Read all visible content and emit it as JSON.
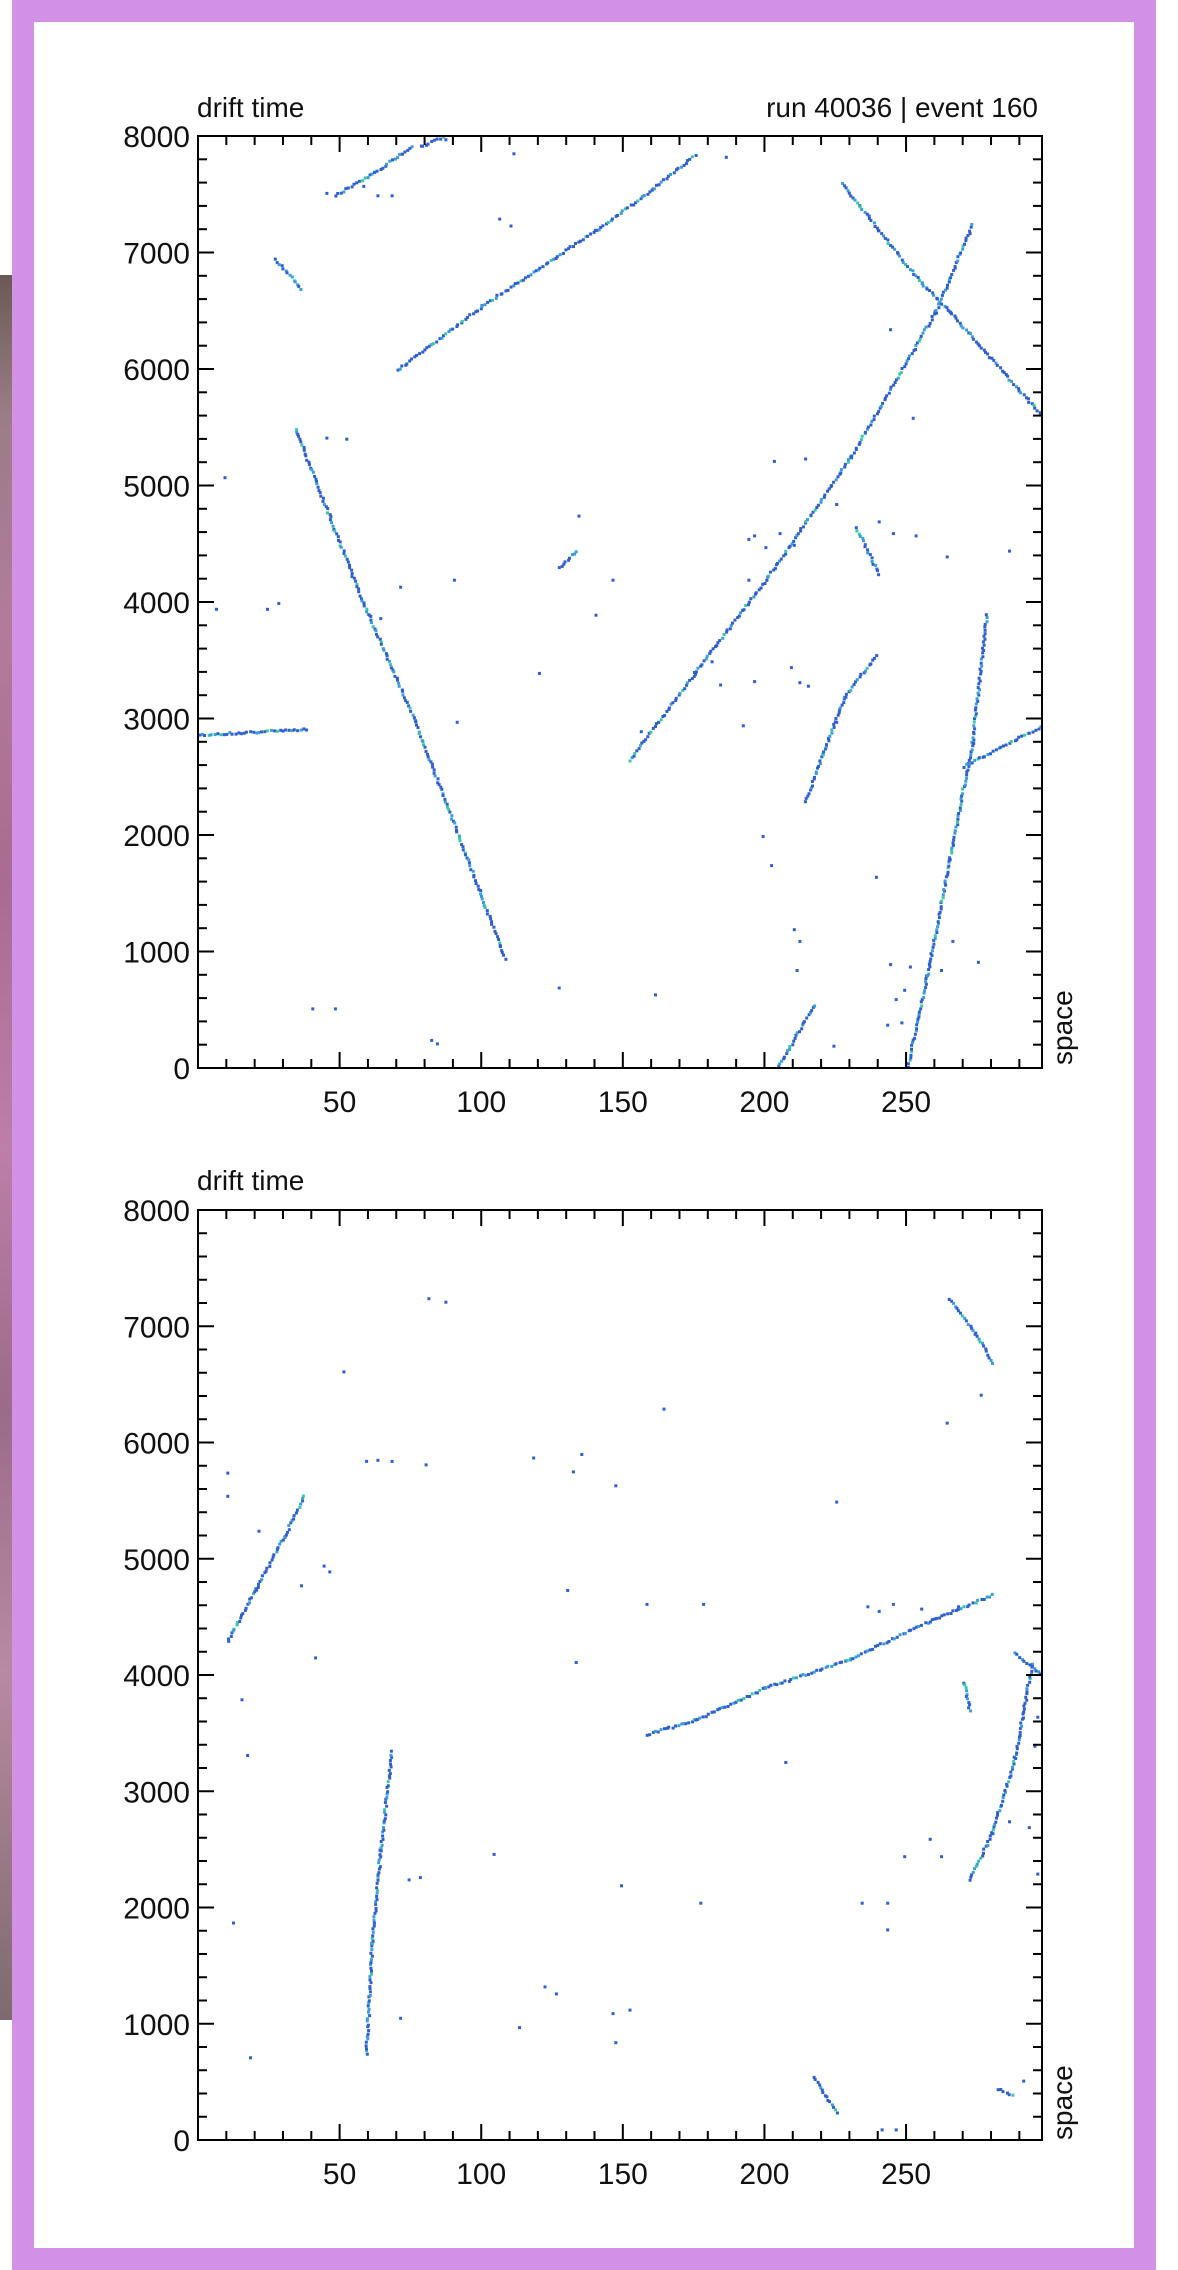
{
  "chart_data": [
    {
      "type": "scatter",
      "title": "run 40036 | event 160",
      "xlabel": "space",
      "ylabel": "drift time",
      "xlim": [
        0,
        298
      ],
      "ylim": [
        0,
        8000
      ],
      "x_ticks": [
        50,
        100,
        150,
        200,
        250
      ],
      "y_ticks": [
        0,
        1000,
        2000,
        3000,
        4000,
        5000,
        6000,
        7000,
        8000
      ],
      "grid": false,
      "colors": {
        "hit": "#2f5fd0",
        "hit_secondary": "#3aa0d8",
        "hit_highlight": "#39c9a8"
      },
      "tracks": [
        {
          "x": [
            34,
            58,
            76,
            108
          ],
          "y": [
            5500,
            4000,
            3000,
            950
          ]
        },
        {
          "x": [
            152,
            175,
            200,
            230,
            260,
            273
          ],
          "y": [
            2650,
            3400,
            4200,
            5250,
            6500,
            7250
          ]
        },
        {
          "x": [
            70,
            100,
            140,
            160,
            175
          ],
          "y": [
            6000,
            6550,
            7200,
            7550,
            7850
          ]
        },
        {
          "x": [
            227,
            240,
            255,
            265,
            298
          ],
          "y": [
            7600,
            7200,
            6750,
            6500,
            5600
          ]
        },
        {
          "x": [
            214,
            220,
            228,
            239
          ],
          "y": [
            2300,
            2700,
            3200,
            3550
          ]
        },
        {
          "x": [
            250,
            257,
            265,
            273,
            278
          ],
          "y": [
            0,
            800,
            1800,
            2800,
            3900
          ]
        },
        {
          "x": [
            0,
            38
          ],
          "y": [
            2870,
            2920
          ]
        },
        {
          "x": [
            270,
            298
          ],
          "y": [
            2600,
            2950
          ]
        },
        {
          "x": [
            204,
            217
          ],
          "y": [
            0,
            550
          ]
        },
        {
          "x": [
            48,
            62,
            75
          ],
          "y": [
            7500,
            7700,
            7920
          ]
        },
        {
          "x": [
            78,
            86
          ],
          "y": [
            7920,
            8000
          ]
        },
        {
          "x": [
            27,
            36
          ],
          "y": [
            6950,
            6700
          ]
        },
        {
          "x": [
            232,
            240
          ],
          "y": [
            4650,
            4250
          ]
        },
        {
          "x": [
            127,
            133
          ],
          "y": [
            4300,
            4450
          ]
        }
      ],
      "hits": [
        [
          45,
          5420
        ],
        [
          52,
          5410
        ],
        [
          9,
          5080
        ],
        [
          6,
          3950
        ],
        [
          24,
          3950
        ],
        [
          28,
          4000
        ],
        [
          40,
          520
        ],
        [
          48,
          520
        ],
        [
          82,
          250
        ],
        [
          84,
          220
        ],
        [
          127,
          700
        ],
        [
          161,
          640
        ],
        [
          90,
          4200
        ],
        [
          71,
          4140
        ],
        [
          91,
          2980
        ],
        [
          120,
          3400
        ],
        [
          140,
          3900
        ],
        [
          146,
          4200
        ],
        [
          184,
          3300
        ],
        [
          192,
          2950
        ],
        [
          181,
          3500
        ],
        [
          196,
          3330
        ],
        [
          199,
          2000
        ],
        [
          202,
          1750
        ],
        [
          225,
          2980
        ],
        [
          239,
          1650
        ],
        [
          209,
          3450
        ],
        [
          246,
          600
        ],
        [
          249,
          680
        ],
        [
          243,
          380
        ],
        [
          248,
          400
        ],
        [
          244,
          900
        ],
        [
          251,
          880
        ],
        [
          262,
          850
        ],
        [
          275,
          920
        ],
        [
          266,
          1100
        ],
        [
          210,
          1200
        ],
        [
          212,
          1100
        ],
        [
          211,
          850
        ],
        [
          224,
          200
        ],
        [
          212,
          3320
        ],
        [
          215,
          3290
        ],
        [
          177,
          8050
        ],
        [
          186,
          7830
        ],
        [
          244,
          6350
        ],
        [
          252,
          5590
        ],
        [
          203,
          5220
        ],
        [
          214,
          5240
        ],
        [
          225,
          4850
        ],
        [
          240,
          4700
        ],
        [
          245,
          4600
        ],
        [
          253,
          4580
        ],
        [
          264,
          4400
        ],
        [
          286,
          4450
        ],
        [
          196,
          4580
        ],
        [
          200,
          4480
        ],
        [
          205,
          4600
        ],
        [
          210,
          4500
        ],
        [
          194,
          4550
        ],
        [
          194,
          4200
        ],
        [
          134,
          4750
        ],
        [
          58,
          7580
        ],
        [
          63,
          7500
        ],
        [
          68,
          7500
        ],
        [
          45,
          7520
        ],
        [
          110,
          7240
        ],
        [
          106,
          7300
        ],
        [
          111,
          7860
        ],
        [
          87,
          7980
        ],
        [
          156,
          2900
        ],
        [
          60,
          3900
        ],
        [
          64,
          3870
        ]
      ]
    },
    {
      "type": "scatter",
      "title": "",
      "xlabel": "space",
      "ylabel": "drift time",
      "xlim": [
        0,
        298
      ],
      "ylim": [
        0,
        8000
      ],
      "x_ticks": [
        50,
        100,
        150,
        200,
        250
      ],
      "y_ticks": [
        0,
        1000,
        2000,
        3000,
        4000,
        5000,
        6000,
        7000,
        8000
      ],
      "grid": false,
      "colors": {
        "hit": "#2f5fd0",
        "hit_secondary": "#3aa0d8",
        "hit_highlight": "#39c9a8"
      },
      "tracks": [
        {
          "x": [
            10,
            20,
            30,
            37
          ],
          "y": [
            4300,
            4750,
            5200,
            5550
          ]
        },
        {
          "x": [
            158,
            175,
            200,
            230,
            260,
            280
          ],
          "y": [
            3500,
            3620,
            3900,
            4150,
            4500,
            4700
          ]
        },
        {
          "x": [
            59,
            61,
            64,
            68
          ],
          "y": [
            750,
            1700,
            2500,
            3350
          ]
        },
        {
          "x": [
            265,
            274,
            280
          ],
          "y": [
            7250,
            6950,
            6700
          ]
        },
        {
          "x": [
            272,
            280,
            288,
            294
          ],
          "y": [
            2250,
            2650,
            3300,
            4100
          ]
        },
        {
          "x": [
            288,
            298
          ],
          "y": [
            4200,
            4000
          ]
        },
        {
          "x": [
            217,
            225
          ],
          "y": [
            550,
            250
          ]
        },
        {
          "x": [
            270,
            272
          ],
          "y": [
            3950,
            3700
          ]
        },
        {
          "x": [
            282,
            287
          ],
          "y": [
            450,
            400
          ]
        }
      ],
      "hits": [
        [
          81,
          7250
        ],
        [
          87,
          7220
        ],
        [
          51,
          6620
        ],
        [
          164,
          6300
        ],
        [
          225,
          5500
        ],
        [
          264,
          6180
        ],
        [
          276,
          6420
        ],
        [
          59,
          5850
        ],
        [
          63,
          5860
        ],
        [
          68,
          5850
        ],
        [
          80,
          5820
        ],
        [
          118,
          5880
        ],
        [
          132,
          5760
        ],
        [
          135,
          5910
        ],
        [
          147,
          5640
        ],
        [
          10,
          5750
        ],
        [
          10,
          5550
        ],
        [
          21,
          5250
        ],
        [
          44,
          4950
        ],
        [
          46,
          4900
        ],
        [
          36,
          4780
        ],
        [
          41,
          4160
        ],
        [
          15,
          3800
        ],
        [
          17,
          3320
        ],
        [
          130,
          4740
        ],
        [
          133,
          4120
        ],
        [
          158,
          4620
        ],
        [
          178,
          4620
        ],
        [
          236,
          4600
        ],
        [
          240,
          4560
        ],
        [
          245,
          4620
        ],
        [
          255,
          4580
        ],
        [
          268,
          4600
        ],
        [
          207,
          3260
        ],
        [
          104,
          2470
        ],
        [
          74,
          2250
        ],
        [
          78,
          2270
        ],
        [
          149,
          2200
        ],
        [
          177,
          2050
        ],
        [
          234,
          2050
        ],
        [
          243,
          2050
        ],
        [
          243,
          1820
        ],
        [
          249,
          2450
        ],
        [
          258,
          2600
        ],
        [
          262,
          2450
        ],
        [
          296,
          2300
        ],
        [
          286,
          2750
        ],
        [
          293,
          2700
        ],
        [
          296,
          3650
        ],
        [
          295,
          3400
        ],
        [
          12,
          1880
        ],
        [
          18,
          720
        ],
        [
          71,
          1060
        ],
        [
          113,
          980
        ],
        [
          122,
          1330
        ],
        [
          126,
          1270
        ],
        [
          146,
          1100
        ],
        [
          152,
          1130
        ],
        [
          147,
          850
        ],
        [
          241,
          100
        ],
        [
          291,
          520
        ],
        [
          246,
          100
        ]
      ]
    }
  ],
  "panels": [
    {
      "ylabel": "drift time",
      "title": "run 40036 | event 160",
      "xlabel": "space"
    },
    {
      "ylabel": "drift time",
      "title": "",
      "xlabel": "space"
    }
  ]
}
